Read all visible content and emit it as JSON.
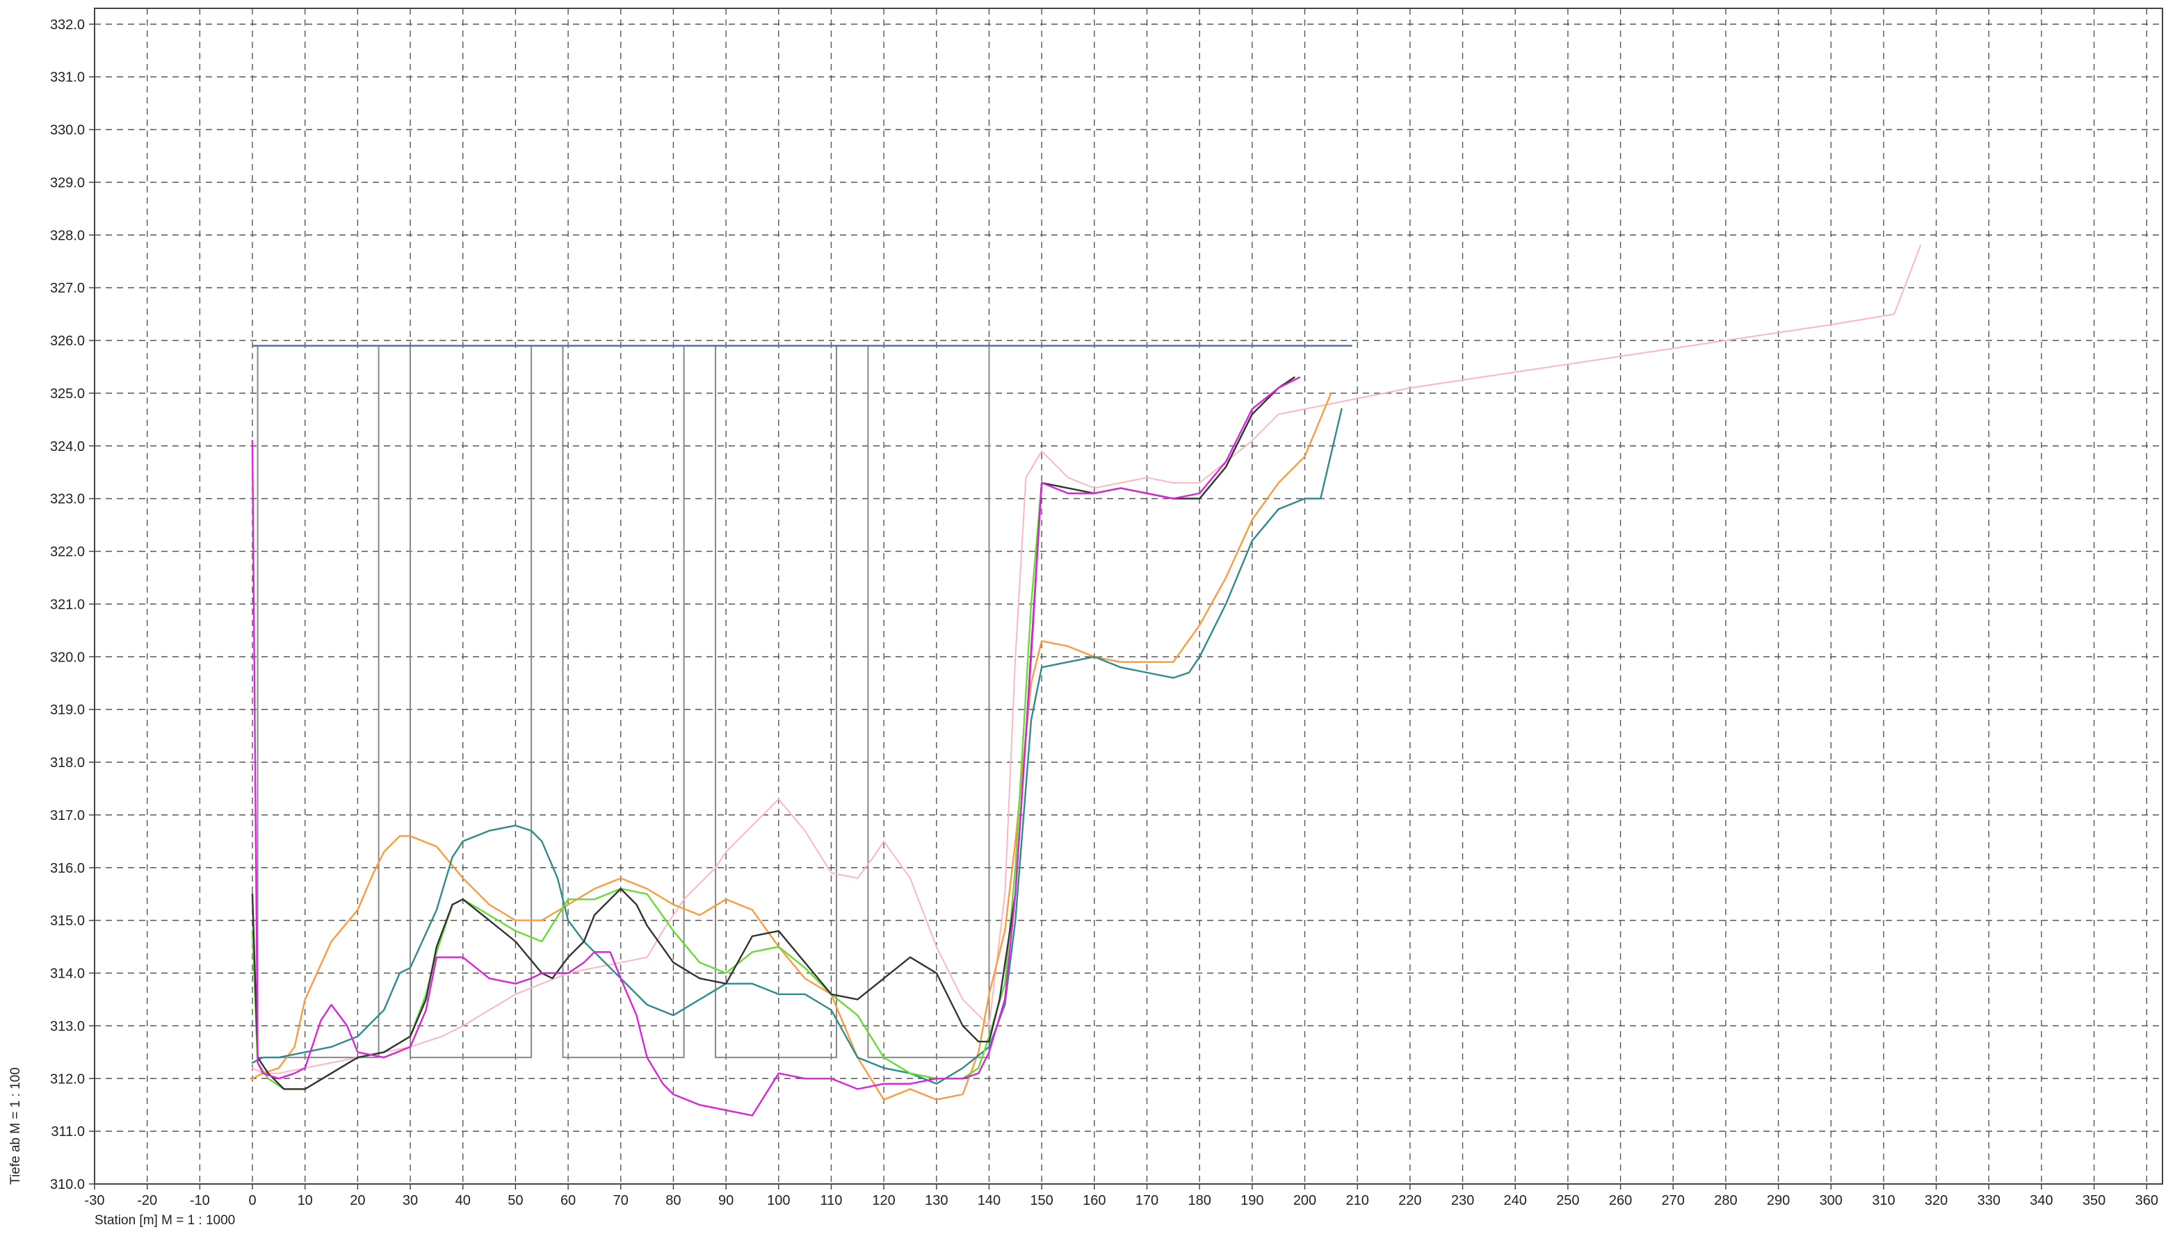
{
  "chart_data": {
    "type": "line",
    "title": "",
    "xlabel": "Station [m]  M = 1 :  1000",
    "ylabel": "Tiefe ab    M = 1 : 100",
    "xlim": [
      -30,
      363
    ],
    "ylim": [
      310.0,
      332.3
    ],
    "x_ticks": [
      -30,
      -20,
      -10,
      0,
      10,
      20,
      30,
      40,
      50,
      60,
      70,
      80,
      90,
      100,
      110,
      120,
      130,
      140,
      150,
      160,
      170,
      180,
      190,
      200,
      210,
      220,
      230,
      240,
      250,
      260,
      270,
      280,
      290,
      300,
      310,
      320,
      330,
      340,
      350,
      360
    ],
    "y_ticks": [
      310.0,
      311.0,
      312.0,
      313.0,
      314.0,
      315.0,
      316.0,
      317.0,
      318.0,
      319.0,
      320.0,
      321.0,
      322.0,
      323.0,
      324.0,
      325.0,
      326.0,
      327.0,
      328.0,
      329.0,
      330.0,
      331.0,
      332.0
    ],
    "grid": true,
    "colors": {
      "frame": "#444444",
      "grid": "#555555",
      "outline": "#888888",
      "water_level": "#5a6fa0"
    },
    "water_level": {
      "x": [
        0,
        209
      ],
      "y": 325.9
    },
    "outline": {
      "name": "",
      "color": "#888888",
      "x": [
        0,
        1,
        1,
        24,
        24,
        30,
        30,
        53,
        53,
        59,
        59,
        82,
        82,
        88,
        88,
        111,
        111,
        117,
        117,
        140,
        140
      ],
      "y": [
        325.9,
        325.9,
        312.4,
        312.4,
        325.9,
        325.9,
        312.4,
        312.4,
        325.9,
        325.9,
        312.4,
        312.4,
        325.9,
        325.9,
        312.4,
        312.4,
        325.9,
        325.9,
        312.4,
        312.4,
        325.9
      ]
    },
    "series": [
      {
        "name": "",
        "color": "#ffb6c1",
        "x": [
          0,
          2,
          5,
          10,
          15,
          20,
          25,
          30,
          33,
          36,
          40,
          45,
          50,
          55,
          60,
          65,
          70,
          75,
          78,
          80,
          82,
          85,
          88,
          90,
          95,
          100,
          105,
          110,
          115,
          118,
          120,
          125,
          130,
          135,
          140,
          143,
          145,
          147,
          150,
          155,
          160,
          165,
          170,
          175,
          180,
          185,
          190,
          195,
          200,
          205,
          210,
          220,
          240,
          260,
          280,
          300,
          312,
          317
        ],
        "y": [
          312.2,
          312.1,
          312.1,
          312.2,
          312.3,
          312.4,
          312.5,
          312.6,
          312.7,
          312.8,
          313.0,
          313.3,
          313.6,
          313.8,
          314.0,
          314.1,
          314.2,
          314.3,
          314.8,
          315.1,
          315.4,
          315.7,
          316.0,
          316.3,
          316.8,
          317.3,
          316.7,
          315.9,
          315.8,
          316.2,
          316.5,
          315.8,
          314.5,
          313.5,
          313.0,
          315.5,
          320.0,
          323.4,
          323.9,
          323.4,
          323.2,
          323.3,
          323.4,
          323.3,
          323.3,
          323.7,
          324.1,
          324.6,
          324.7,
          324.8,
          324.9,
          325.1,
          325.4,
          325.7,
          326.0,
          326.3,
          326.5,
          327.8
        ]
      },
      {
        "name": "",
        "color": "#ff9a3c",
        "x": [
          0,
          2,
          5,
          8,
          10,
          15,
          20,
          23,
          25,
          28,
          30,
          35,
          40,
          45,
          50,
          55,
          60,
          65,
          70,
          75,
          80,
          85,
          90,
          95,
          100,
          105,
          110,
          115,
          120,
          125,
          130,
          135,
          138,
          140,
          143,
          145,
          148,
          150,
          155,
          160,
          165,
          170,
          175,
          180,
          185,
          190,
          195,
          200,
          205
        ],
        "y": [
          312.0,
          312.1,
          312.2,
          312.6,
          313.5,
          314.6,
          315.2,
          315.9,
          316.3,
          316.6,
          316.6,
          316.4,
          315.8,
          315.3,
          315.0,
          315.0,
          315.3,
          315.6,
          315.8,
          315.6,
          315.3,
          315.1,
          315.4,
          315.2,
          314.5,
          313.9,
          313.6,
          312.4,
          311.6,
          311.8,
          311.6,
          311.7,
          312.5,
          313.6,
          314.8,
          316.5,
          319.5,
          320.3,
          320.2,
          320.0,
          319.9,
          319.9,
          319.9,
          320.6,
          321.5,
          322.6,
          323.3,
          323.8,
          325.0
        ]
      },
      {
        "name": "",
        "color": "#2e8b8b",
        "x": [
          0,
          2,
          5,
          10,
          15,
          20,
          25,
          28,
          30,
          35,
          38,
          40,
          45,
          50,
          53,
          55,
          58,
          60,
          63,
          65,
          70,
          75,
          80,
          85,
          90,
          95,
          100,
          105,
          110,
          115,
          120,
          125,
          130,
          135,
          140,
          143,
          145,
          148,
          150,
          155,
          160,
          165,
          170,
          175,
          178,
          180,
          185,
          190,
          195,
          200,
          203,
          207
        ],
        "y": [
          312.3,
          312.4,
          312.4,
          312.5,
          312.6,
          312.8,
          313.3,
          314.0,
          314.1,
          315.2,
          316.2,
          316.5,
          316.7,
          316.8,
          316.7,
          316.5,
          315.8,
          315.0,
          314.6,
          314.4,
          313.9,
          313.4,
          313.2,
          313.5,
          313.8,
          313.8,
          313.6,
          313.6,
          313.3,
          312.4,
          312.2,
          312.1,
          311.9,
          312.2,
          312.6,
          313.4,
          315.0,
          318.8,
          319.8,
          319.9,
          320.0,
          319.8,
          319.7,
          319.6,
          319.7,
          320.0,
          321.0,
          322.2,
          322.8,
          323.0,
          323.0,
          324.7
        ]
      },
      {
        "name": "",
        "color": "#66dd33",
        "x": [
          0,
          1,
          3,
          6,
          10,
          15,
          20,
          25,
          30,
          33,
          35,
          38,
          40,
          45,
          50,
          55,
          60,
          65,
          70,
          75,
          80,
          85,
          90,
          95,
          100,
          105,
          110,
          115,
          120,
          125,
          130,
          135,
          138,
          140,
          143,
          145,
          148,
          150,
          155,
          160,
          165,
          170,
          175,
          180,
          185,
          190,
          195,
          198
        ],
        "y": [
          314.8,
          312.3,
          312.0,
          311.8,
          311.8,
          312.1,
          312.4,
          312.5,
          312.8,
          313.6,
          314.4,
          315.3,
          315.4,
          315.1,
          314.8,
          314.6,
          315.4,
          315.4,
          315.6,
          315.5,
          314.8,
          314.2,
          314.0,
          314.4,
          314.5,
          314.1,
          313.6,
          313.2,
          312.4,
          312.1,
          312.0,
          312.0,
          312.2,
          312.8,
          313.8,
          316.0,
          321.0,
          323.3,
          323.2,
          323.1,
          323.2,
          323.1,
          323.0,
          323.0,
          323.6,
          324.6,
          325.1,
          325.3
        ]
      },
      {
        "name": "",
        "color": "#333333",
        "x": [
          0,
          1,
          3,
          6,
          10,
          15,
          20,
          25,
          30,
          33,
          35,
          38,
          40,
          45,
          50,
          55,
          57,
          60,
          63,
          65,
          70,
          73,
          75,
          80,
          85,
          90,
          95,
          100,
          105,
          110,
          115,
          120,
          125,
          130,
          135,
          138,
          140,
          142,
          145,
          147,
          150,
          155,
          160,
          165,
          170,
          175,
          180,
          185,
          190,
          195,
          198
        ],
        "y": [
          315.5,
          312.4,
          312.1,
          311.8,
          311.8,
          312.1,
          312.4,
          312.5,
          312.8,
          313.5,
          314.5,
          315.3,
          315.4,
          315.0,
          314.6,
          314.0,
          313.9,
          314.3,
          314.6,
          315.1,
          315.6,
          315.3,
          314.9,
          314.2,
          313.9,
          313.8,
          314.7,
          314.8,
          314.2,
          313.6,
          313.5,
          313.9,
          314.3,
          314.0,
          313.0,
          312.7,
          312.7,
          313.5,
          315.5,
          318.5,
          323.3,
          323.2,
          323.1,
          323.2,
          323.1,
          323.0,
          323.0,
          323.6,
          324.6,
          325.1,
          325.3
        ]
      },
      {
        "name": "",
        "color": "#dd22dd",
        "x": [
          0,
          1,
          2,
          5,
          8,
          10,
          13,
          15,
          18,
          20,
          25,
          30,
          33,
          35,
          40,
          45,
          50,
          53,
          55,
          60,
          63,
          65,
          68,
          70,
          73,
          75,
          78,
          80,
          85,
          90,
          95,
          100,
          105,
          110,
          115,
          120,
          125,
          130,
          135,
          138,
          140,
          143,
          145,
          148,
          150,
          155,
          160,
          165,
          170,
          175,
          180,
          185,
          190,
          195,
          199
        ],
        "y": [
          324.1,
          312.3,
          312.1,
          312.0,
          312.1,
          312.2,
          313.1,
          313.4,
          313.0,
          312.5,
          312.4,
          312.6,
          313.3,
          314.3,
          314.3,
          313.9,
          313.8,
          313.9,
          314.0,
          314.0,
          314.2,
          314.4,
          314.4,
          313.9,
          313.2,
          312.4,
          311.9,
          311.7,
          311.5,
          311.4,
          311.3,
          312.1,
          312.0,
          312.0,
          311.8,
          311.9,
          311.9,
          312.0,
          312.0,
          312.1,
          312.5,
          313.5,
          315.5,
          320.0,
          323.3,
          323.1,
          323.1,
          323.2,
          323.1,
          323.0,
          323.1,
          323.7,
          324.7,
          325.1,
          325.3
        ]
      }
    ]
  }
}
